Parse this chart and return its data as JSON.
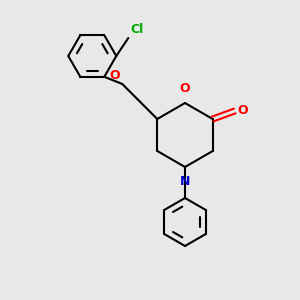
{
  "bg_color": "#e8e8e8",
  "bond_color": "#000000",
  "atom_colors": {
    "O": "#ff0000",
    "N": "#0000cc",
    "Cl": "#00aa00"
  },
  "figsize": [
    3.0,
    3.0
  ],
  "dpi": 100
}
